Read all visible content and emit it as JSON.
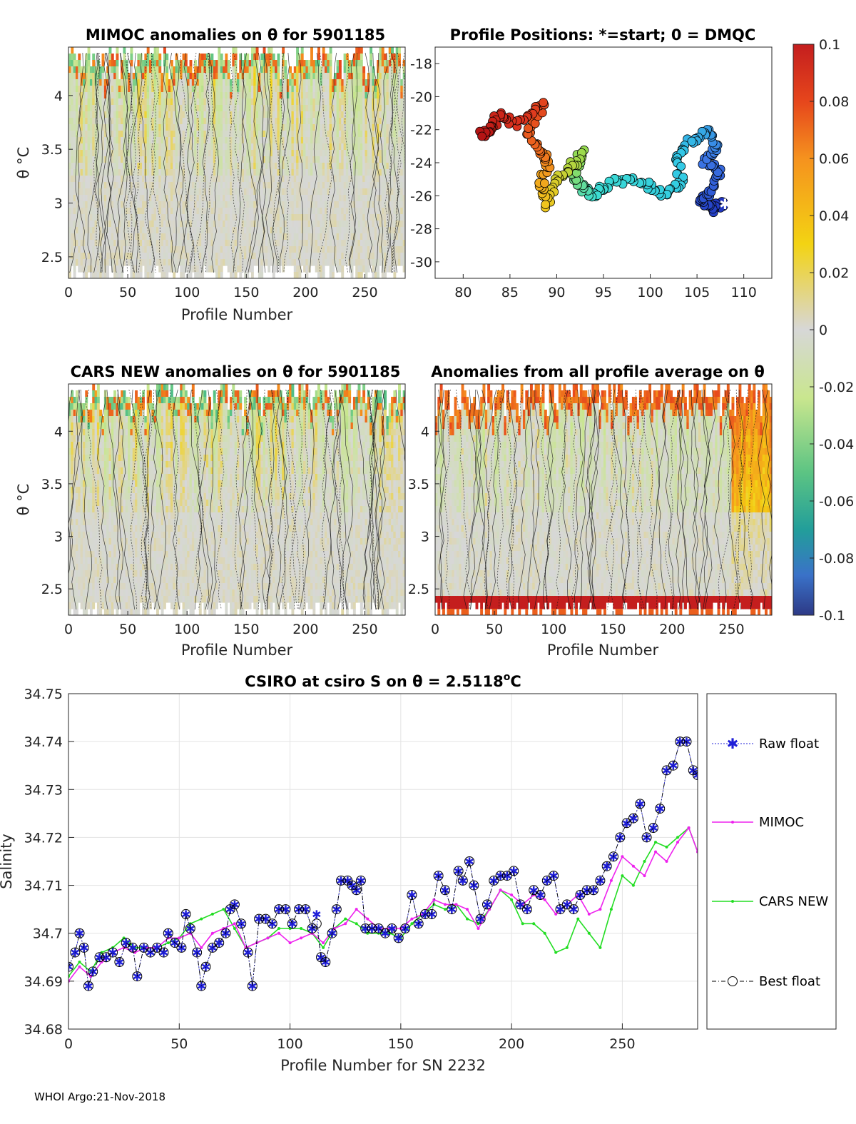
{
  "footer": "WHOI Argo:21-Nov-2018",
  "colors": {
    "raw_float": "#1f1fd8",
    "mimoc": "#ee22ee",
    "cars_new": "#22dd22",
    "best_float": "#000000",
    "anomaly_neutral": "#d8d8d8"
  },
  "chart_data": [
    {
      "id": "mimoc_panel",
      "type": "heatmap",
      "title": "MIMOC anomalies on θ  for 5901185",
      "xlabel": "Profile Number",
      "ylabel": "θ °C",
      "xlim": [
        0,
        284
      ],
      "ylim": [
        2.3,
        4.45
      ],
      "xticks": [
        0,
        50,
        100,
        150,
        200,
        250
      ],
      "yticks": [
        2.5,
        3,
        3.5,
        4
      ]
    },
    {
      "id": "positions_panel",
      "type": "scatter",
      "title": "Profile Positions: *=start; 0 = DMQC",
      "xlim": [
        77,
        113
      ],
      "ylim": [
        -31,
        -17
      ],
      "xticks": [
        80,
        85,
        90,
        95,
        100,
        105,
        110
      ],
      "yticks": [
        -18,
        -20,
        -22,
        -24,
        -26,
        -28,
        -30
      ],
      "track_waypoints": [
        [
          108.0,
          -26.5
        ],
        [
          106.5,
          -26.8
        ],
        [
          105.2,
          -26.2
        ],
        [
          106.6,
          -25.8
        ],
        [
          107.5,
          -24.6
        ],
        [
          105.8,
          -23.9
        ],
        [
          107.2,
          -23.0
        ],
        [
          106.3,
          -22.0
        ],
        [
          104.5,
          -22.6
        ],
        [
          102.8,
          -23.6
        ],
        [
          103.3,
          -25.2
        ],
        [
          101.5,
          -25.9
        ],
        [
          99.8,
          -25.4
        ],
        [
          97.6,
          -25.0
        ],
        [
          95.5,
          -25.3
        ],
        [
          94.0,
          -26.0
        ],
        [
          92.8,
          -25.5
        ],
        [
          91.8,
          -24.9
        ],
        [
          92.6,
          -23.4
        ],
        [
          91.4,
          -24.4
        ],
        [
          90.1,
          -25.0
        ],
        [
          88.9,
          -26.5
        ],
        [
          88.4,
          -25.2
        ],
        [
          89.0,
          -23.9
        ],
        [
          88.2,
          -23.2
        ],
        [
          86.9,
          -22.2
        ],
        [
          88.5,
          -20.4
        ],
        [
          86.0,
          -21.7
        ],
        [
          84.0,
          -21.1
        ],
        [
          82.8,
          -21.8
        ],
        [
          82.0,
          -22.4
        ]
      ]
    },
    {
      "id": "colorbar",
      "type": "heatmap",
      "title": "",
      "range": [
        -0.1,
        0.1
      ],
      "ticks": [
        0.1,
        0.08,
        0.06,
        0.04,
        0.02,
        0,
        -0.02,
        -0.04,
        -0.06,
        -0.08,
        -0.1
      ],
      "ticklabels": [
        "0.1",
        "0.08",
        "0.06",
        "0.04",
        "0.02",
        "0",
        "-0.02",
        "-0.04",
        "-0.06",
        "-0.08",
        "-0.1"
      ]
    },
    {
      "id": "cars_panel",
      "type": "heatmap",
      "title": "CARS NEW anomalies on θ for 5901185",
      "xlabel": "Profile Number",
      "ylabel": "θ °C",
      "xlim": [
        0,
        284
      ],
      "ylim": [
        2.25,
        4.45
      ],
      "xticks": [
        0,
        50,
        100,
        150,
        200,
        250
      ],
      "yticks": [
        2.5,
        3,
        3.5,
        4
      ]
    },
    {
      "id": "avg_panel",
      "type": "heatmap",
      "title": "Anomalies from all profile average on θ",
      "xlabel": "Profile Number",
      "xlim": [
        0,
        284
      ],
      "ylim": [
        2.25,
        4.45
      ],
      "xticks": [
        0,
        50,
        100,
        150,
        200,
        250
      ],
      "yticks": [
        2.5,
        3,
        3.5,
        4
      ]
    },
    {
      "id": "salinity_panel",
      "type": "line",
      "title_main": "CSIRO at csiro S on θ = 2.5118",
      "title_sup": "o",
      "title_end": "C",
      "xlabel": "Profile Number for SN 2232",
      "ylabel": "Salinity",
      "xlim": [
        0,
        284
      ],
      "ylim": [
        34.68,
        34.75
      ],
      "xticks": [
        0,
        50,
        100,
        150,
        200,
        250
      ],
      "yticks": [
        34.68,
        34.69,
        34.7,
        34.71,
        34.72,
        34.73,
        34.74,
        34.75
      ],
      "yticklabels": [
        "34.68",
        "34.69",
        "34.7",
        "34.71",
        "34.72",
        "34.73",
        "34.74",
        "34.75"
      ],
      "legend": [
        "Raw float",
        "MIMOC",
        "CARS NEW",
        "Best float"
      ],
      "series": [
        {
          "name": "MIMOC",
          "x": [
            0,
            5,
            10,
            15,
            20,
            25,
            30,
            35,
            40,
            45,
            50,
            55,
            60,
            65,
            70,
            75,
            80,
            85,
            90,
            95,
            100,
            105,
            110,
            115,
            120,
            125,
            130,
            135,
            140,
            145,
            150,
            155,
            160,
            165,
            170,
            175,
            180,
            185,
            190,
            195,
            200,
            205,
            210,
            215,
            220,
            225,
            230,
            235,
            240,
            245,
            250,
            255,
            260,
            265,
            270,
            275,
            280,
            284
          ],
          "values": [
            34.69,
            34.693,
            34.691,
            34.694,
            34.696,
            34.697,
            34.696,
            34.697,
            34.697,
            34.699,
            34.699,
            34.7,
            34.697,
            34.7,
            34.701,
            34.702,
            34.697,
            34.698,
            34.699,
            34.7,
            34.698,
            34.699,
            34.7,
            34.698,
            34.701,
            34.702,
            34.705,
            34.703,
            34.701,
            34.701,
            34.701,
            34.703,
            34.704,
            34.707,
            34.706,
            34.706,
            34.705,
            34.701,
            34.705,
            34.709,
            34.708,
            34.706,
            34.708,
            34.707,
            34.704,
            34.706,
            34.708,
            34.704,
            34.705,
            34.711,
            34.716,
            34.714,
            34.712,
            34.717,
            34.715,
            34.719,
            34.722,
            34.717
          ]
        },
        {
          "name": "CARS NEW",
          "x": [
            0,
            5,
            10,
            15,
            20,
            25,
            30,
            35,
            40,
            45,
            50,
            55,
            60,
            65,
            70,
            75,
            80,
            85,
            90,
            95,
            100,
            105,
            110,
            115,
            120,
            125,
            130,
            135,
            140,
            145,
            150,
            155,
            160,
            165,
            170,
            175,
            180,
            185,
            190,
            195,
            200,
            205,
            210,
            215,
            220,
            225,
            230,
            235,
            240,
            245,
            250,
            255,
            260,
            265,
            270,
            275,
            280,
            284
          ],
          "values": [
            34.691,
            34.694,
            34.692,
            34.696,
            34.697,
            34.699,
            34.697,
            34.697,
            34.697,
            34.698,
            34.699,
            34.702,
            34.703,
            34.704,
            34.705,
            34.701,
            34.697,
            34.698,
            34.699,
            34.701,
            34.701,
            34.701,
            34.7,
            34.697,
            34.701,
            34.703,
            34.702,
            34.7,
            34.7,
            34.7,
            34.699,
            34.702,
            34.704,
            34.706,
            34.705,
            34.706,
            34.703,
            34.702,
            34.705,
            34.709,
            34.707,
            34.702,
            34.702,
            34.7,
            34.696,
            34.697,
            34.703,
            34.7,
            34.697,
            34.705,
            34.712,
            34.71,
            34.715,
            34.719,
            34.718,
            34.72,
            34.722,
            34.717
          ]
        },
        {
          "name": "Best float",
          "x": [
            0,
            3,
            5,
            7,
            9,
            11,
            14,
            17,
            20,
            23,
            26,
            29,
            31,
            34,
            37,
            40,
            43,
            45,
            48,
            51,
            53,
            55,
            58,
            60,
            62,
            65,
            68,
            71,
            73,
            75,
            78,
            81,
            83,
            86,
            89,
            92,
            95,
            98,
            101,
            104,
            107,
            110,
            112,
            114,
            116,
            119,
            121,
            123,
            126,
            128,
            130,
            132,
            134,
            137,
            140,
            143,
            146,
            149,
            152,
            155,
            158,
            161,
            164,
            167,
            170,
            173,
            176,
            178,
            181,
            183,
            186,
            189,
            192,
            195,
            198,
            201,
            204,
            207,
            210,
            213,
            216,
            219,
            222,
            225,
            228,
            231,
            234,
            237,
            240,
            243,
            246,
            249,
            252,
            255,
            258,
            261,
            264,
            267,
            270,
            273,
            276,
            279,
            282,
            284
          ],
          "values": [
            34.693,
            34.696,
            34.7,
            34.697,
            34.689,
            34.692,
            34.695,
            34.695,
            34.696,
            34.694,
            34.698,
            34.697,
            34.691,
            34.697,
            34.696,
            34.697,
            34.696,
            34.7,
            34.698,
            34.697,
            34.704,
            34.701,
            34.696,
            34.689,
            34.693,
            34.697,
            34.698,
            34.7,
            34.705,
            34.706,
            34.702,
            34.696,
            34.689,
            34.703,
            34.703,
            34.702,
            34.705,
            34.705,
            34.702,
            34.705,
            34.705,
            34.701,
            34.702,
            34.695,
            34.694,
            34.7,
            34.705,
            34.711,
            34.711,
            34.71,
            34.709,
            34.711,
            34.701,
            34.701,
            34.701,
            34.7,
            34.701,
            34.699,
            34.701,
            34.708,
            34.702,
            34.704,
            34.704,
            34.712,
            34.709,
            34.705,
            34.713,
            34.711,
            34.715,
            34.71,
            34.703,
            34.706,
            34.711,
            34.712,
            34.712,
            34.713,
            34.706,
            34.705,
            34.709,
            34.708,
            34.711,
            34.712,
            34.705,
            34.706,
            34.705,
            34.708,
            34.709,
            34.709,
            34.711,
            34.714,
            34.716,
            34.72,
            34.723,
            34.724,
            34.727,
            34.72,
            34.722,
            34.726,
            34.734,
            34.735,
            34.74,
            34.74,
            34.734,
            34.733
          ]
        },
        {
          "name": "Raw float",
          "x": [
            0,
            3,
            5,
            7,
            9,
            11,
            14,
            17,
            20,
            23,
            26,
            29,
            31,
            34,
            37,
            40,
            43,
            45,
            48,
            51,
            53,
            55,
            58,
            60,
            62,
            65,
            68,
            71,
            73,
            75,
            78,
            81,
            83,
            86,
            89,
            92,
            95,
            98,
            101,
            104,
            107,
            110,
            112,
            114,
            116,
            119,
            121,
            123,
            126,
            128,
            130,
            132,
            134,
            137,
            140,
            143,
            146,
            149,
            152,
            155,
            158,
            161,
            164,
            167,
            170,
            173,
            176,
            178,
            181,
            183,
            186,
            189,
            192,
            195,
            198,
            201,
            204,
            207,
            210,
            213,
            216,
            219,
            222,
            225,
            228,
            231,
            234,
            237,
            240,
            243,
            246,
            249,
            252,
            255,
            258,
            261,
            264,
            267,
            270,
            273,
            276,
            279,
            282,
            284
          ],
          "values": [
            34.693,
            34.696,
            34.7,
            34.697,
            34.689,
            34.692,
            34.695,
            34.695,
            34.696,
            34.694,
            34.698,
            34.697,
            34.691,
            34.697,
            34.696,
            34.697,
            34.696,
            34.7,
            34.698,
            34.697,
            34.704,
            34.701,
            34.696,
            34.689,
            34.693,
            34.697,
            34.698,
            34.7,
            34.705,
            34.706,
            34.702,
            34.696,
            34.689,
            34.703,
            34.703,
            34.702,
            34.705,
            34.705,
            34.702,
            34.705,
            34.705,
            34.701,
            34.704,
            34.695,
            34.694,
            34.7,
            34.705,
            34.711,
            34.711,
            34.71,
            34.709,
            34.711,
            34.701,
            34.701,
            34.701,
            34.7,
            34.701,
            34.699,
            34.701,
            34.708,
            34.702,
            34.704,
            34.704,
            34.712,
            34.709,
            34.705,
            34.713,
            34.711,
            34.715,
            34.71,
            34.703,
            34.706,
            34.711,
            34.712,
            34.712,
            34.713,
            34.706,
            34.705,
            34.709,
            34.708,
            34.711,
            34.712,
            34.705,
            34.706,
            34.705,
            34.708,
            34.709,
            34.709,
            34.711,
            34.714,
            34.716,
            34.72,
            34.723,
            34.724,
            34.727,
            34.72,
            34.722,
            34.726,
            34.734,
            34.735,
            34.74,
            34.74,
            34.734,
            34.733
          ]
        }
      ]
    }
  ]
}
